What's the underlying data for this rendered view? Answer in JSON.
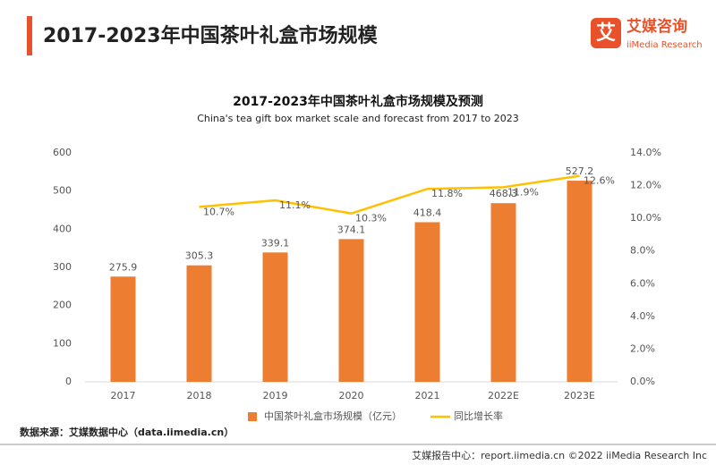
{
  "header": {
    "title": "2017-2023年中国茶叶礼盒市场规模",
    "logo_icon": "艾",
    "logo_name": "艾媒咨询",
    "logo_sub": "iiMedia Research"
  },
  "chart_data": {
    "type": "bar",
    "title": "2017-2023年中国茶叶礼盒市场规模及预测",
    "subtitle": "China's tea gift box market scale and forecast from 2017 to 2023",
    "categories": [
      "2017",
      "2018",
      "2019",
      "2020",
      "2021",
      "2022E",
      "2023E"
    ],
    "series": [
      {
        "name": "中国茶叶礼盒市场规模（亿元）",
        "type": "bar",
        "color": "#ED7D31",
        "values": [
          275.9,
          305.3,
          339.1,
          374.1,
          418.4,
          468.3,
          527.2
        ]
      },
      {
        "name": "同比增长率",
        "type": "line",
        "axis": "y2",
        "color": "#FFC000",
        "values": [
          null,
          10.7,
          11.1,
          10.3,
          11.8,
          11.9,
          12.6
        ],
        "value_labels": [
          null,
          "10.7%",
          "11.1%",
          "10.3%",
          "11.8%",
          "11.9%",
          "12.6%"
        ]
      }
    ],
    "ylim": [
      0,
      600
    ],
    "yticks": [
      0,
      100,
      200,
      300,
      400,
      500,
      600
    ],
    "y2lim": [
      0,
      14
    ],
    "y2ticks": [
      {
        "value": 0,
        "label": "0.0%"
      },
      {
        "value": 2,
        "label": "2.0%"
      },
      {
        "value": 4,
        "label": "4.0%"
      },
      {
        "value": 6,
        "label": "6.0%"
      },
      {
        "value": 8,
        "label": "8.0%"
      },
      {
        "value": 10,
        "label": "10.0%"
      },
      {
        "value": 12,
        "label": "12.0%"
      },
      {
        "value": 14,
        "label": "14.0%"
      }
    ],
    "grid": false,
    "legend": "bottom"
  },
  "source": "数据来源：艾媒数据中心（data.iimedia.cn）",
  "footer": "艾媒报告中心：report.iimedia.cn  ©2022  iiMedia Research  Inc"
}
